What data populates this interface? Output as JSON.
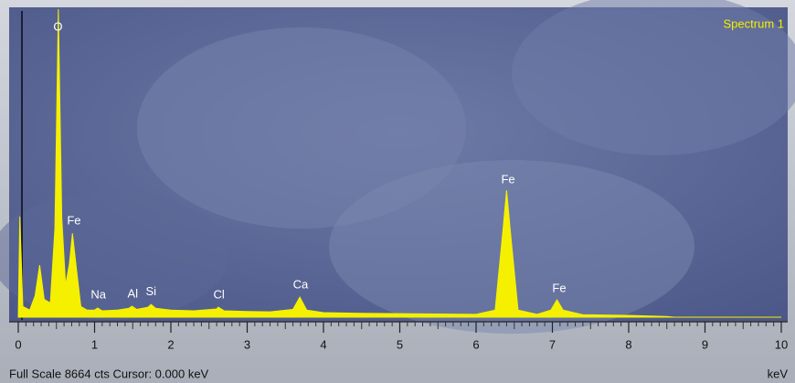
{
  "chart_data": {
    "type": "area",
    "title": "Spectrum 1",
    "x_label": "keV",
    "footer": "Full Scale 8664 cts  Cursor: 0.000 keV",
    "color": "#f5f000",
    "x": [
      0,
      0.02,
      0.06,
      0.15,
      0.22,
      0.28,
      0.34,
      0.42,
      0.48,
      0.525,
      0.57,
      0.62,
      0.67,
      0.71,
      0.76,
      0.82,
      0.9,
      1.0,
      1.04,
      1.1,
      1.3,
      1.45,
      1.49,
      1.55,
      1.7,
      1.74,
      1.8,
      2.0,
      2.3,
      2.6,
      2.62,
      2.7,
      3.0,
      3.3,
      3.6,
      3.69,
      3.78,
      4.0,
      4.5,
      5.0,
      5.5,
      6.0,
      6.25,
      6.35,
      6.4,
      6.45,
      6.55,
      6.8,
      6.98,
      7.06,
      7.14,
      7.4,
      8.0,
      8.5,
      8.6,
      10
    ],
    "values": [
      0,
      2830,
      300,
      200,
      600,
      1465,
      500,
      400,
      2500,
      8664,
      2800,
      900,
      1500,
      2360,
      1400,
      300,
      200,
      200,
      257,
      180,
      200,
      250,
      308,
      220,
      280,
      360,
      250,
      200,
      180,
      230,
      283,
      180,
      160,
      150,
      220,
      565,
      200,
      130,
      110,
      100,
      90,
      80,
      200,
      2400,
      3570,
      2400,
      200,
      80,
      200,
      488,
      200,
      70,
      50,
      20,
      0,
      0
    ],
    "annotations": [
      {
        "text": "O",
        "x": 0.52,
        "y": 8150
      },
      {
        "text": "Fe",
        "x": 0.73,
        "y": 2700
      },
      {
        "text": "Na",
        "x": 1.05,
        "y": 620
      },
      {
        "text": "Al",
        "x": 1.5,
        "y": 645
      },
      {
        "text": "Si",
        "x": 1.74,
        "y": 700
      },
      {
        "text": "Cl",
        "x": 2.63,
        "y": 620
      },
      {
        "text": "Ca",
        "x": 3.7,
        "y": 900
      },
      {
        "text": "Fe",
        "x": 6.42,
        "y": 3860
      },
      {
        "text": "Fe",
        "x": 7.09,
        "y": 800
      }
    ],
    "xlim": [
      0,
      10
    ],
    "xticks": [
      0,
      1,
      2,
      3,
      4,
      5,
      6,
      7,
      8,
      9,
      10
    ],
    "ylim": [
      0,
      8664
    ]
  }
}
